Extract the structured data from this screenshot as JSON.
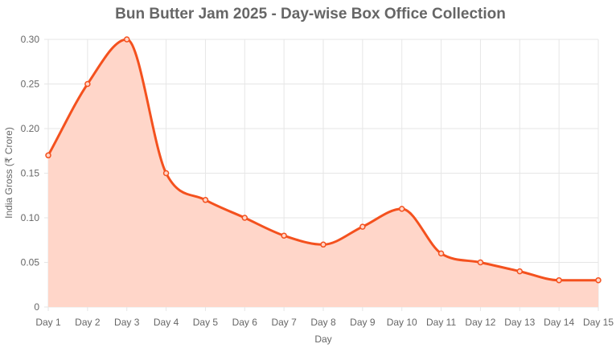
{
  "chart_data": {
    "type": "area",
    "title": "Bun Butter Jam 2025 - Day-wise Box Office Collection",
    "xlabel": "Day",
    "ylabel": "India Gross (₹ Crore)",
    "categories": [
      "Day 1",
      "Day 2",
      "Day 3",
      "Day 4",
      "Day 5",
      "Day 6",
      "Day 7",
      "Day 8",
      "Day 9",
      "Day 10",
      "Day 11",
      "Day 12",
      "Day 13",
      "Day 14",
      "Day 15"
    ],
    "series": [
      {
        "values": [
          0.17,
          0.25,
          0.3,
          0.15,
          0.12,
          0.1,
          0.08,
          0.07,
          0.09,
          0.11,
          0.06,
          0.05,
          0.04,
          0.03,
          0.03
        ]
      }
    ],
    "ylim": [
      0,
      0.3
    ],
    "yticks": [
      "0",
      "0.05",
      "0.10",
      "0.15",
      "0.20",
      "0.25",
      "0.30"
    ],
    "grid": true,
    "legend": "none",
    "colors": {
      "line": "#f4511e",
      "fill": "#ffd6c9",
      "grid": "#e6e6e6",
      "text": "#666666"
    }
  }
}
